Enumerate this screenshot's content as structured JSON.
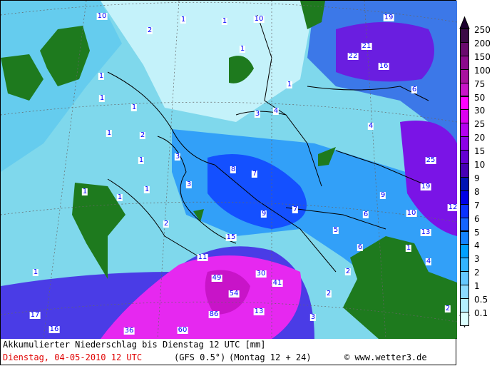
{
  "caption": {
    "title": "Akkumulierter Niederschlag bis Dienstag 12 UTC [mm]",
    "valid_time": "Dienstag, 04-05-2010  12 UTC",
    "model": "(GFS 0.5°)",
    "run": "(Montag 12 + 24)",
    "copyright": "© www.wetter3.de"
  },
  "legend": {
    "unit": "mm",
    "levels": [
      "250",
      "200",
      "150",
      "100",
      "75",
      "50",
      "30",
      "25",
      "20",
      "15",
      "10",
      "9",
      "8",
      "7",
      "6",
      "5",
      "4",
      "3",
      "2",
      "1",
      "0.5",
      "0.1"
    ],
    "colors": [
      "#1e0030",
      "#3c0a46",
      "#6a0a6e",
      "#8c0a8c",
      "#a8129e",
      "#c814c8",
      "#ff00ff",
      "#dc00f0",
      "#b400f0",
      "#8c00e6",
      "#6400d2",
      "#4600b4",
      "#0014b4",
      "#0000e6",
      "#0a32ff",
      "#1464ff",
      "#1482ff",
      "#00a0ff",
      "#32b4ff",
      "#64c8ff",
      "#8cdcff",
      "#b4f0ff",
      "#dcffff"
    ]
  },
  "map": {
    "land_color": "#1e7a1e",
    "value_labels": [
      "10",
      "1",
      "1",
      "10",
      "2",
      "19",
      "1",
      "21",
      "22",
      "16",
      "1",
      "1",
      "6",
      "1",
      "1",
      "3",
      "4",
      "1",
      "2",
      "4",
      "3",
      "1",
      "25",
      "8",
      "7",
      "3",
      "1",
      "1",
      "1",
      "9",
      "19",
      "9",
      "7",
      "6",
      "10",
      "12",
      "2",
      "5",
      "15",
      "13",
      "6",
      "1",
      "11",
      "4",
      "1",
      "49",
      "30",
      "41",
      "2",
      "54",
      "2",
      "13",
      "86",
      "3",
      "17",
      "2",
      "16",
      "36",
      "60"
    ]
  }
}
